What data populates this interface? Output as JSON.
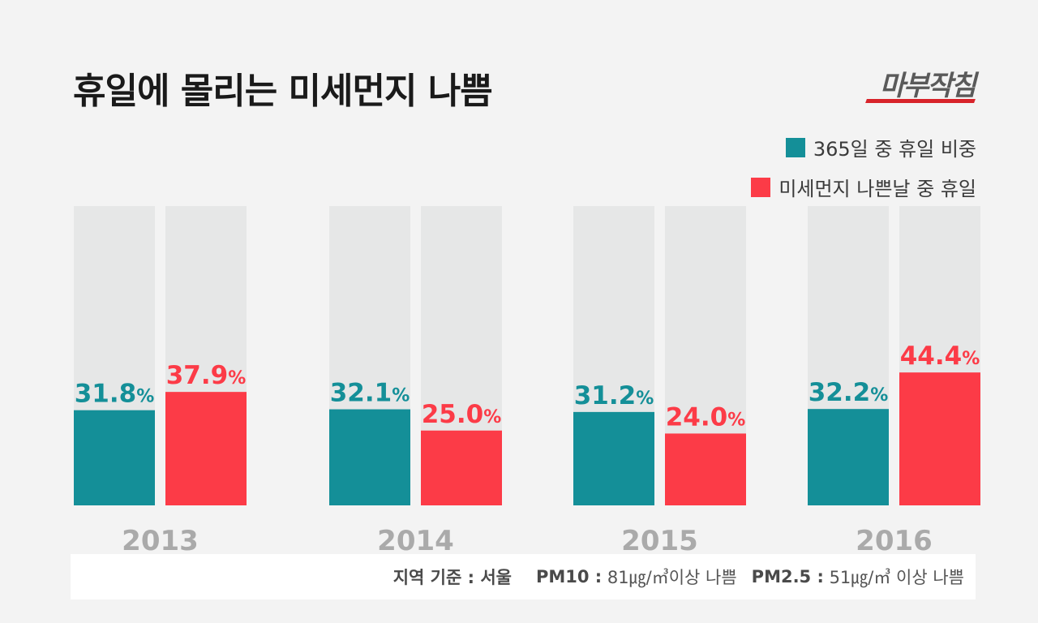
{
  "title": "휴일에 몰리는 미세먼지 나쁨",
  "brand": "마부작침",
  "legend": [
    {
      "label": "365일 중 휴일 비중",
      "color": "#148f98"
    },
    {
      "label": "미세먼지 나쁜날 중 휴일",
      "color": "#fc3b47"
    }
  ],
  "chart_data": {
    "type": "bar",
    "title": "휴일에 몰리는 미세먼지 나쁨",
    "categories": [
      "2013",
      "2014",
      "2015",
      "2016"
    ],
    "series": [
      {
        "name": "365일 중 휴일 비중",
        "values": [
          31.8,
          32.1,
          31.2,
          32.2
        ],
        "color": "#148f98"
      },
      {
        "name": "미세먼지 나쁜날 중 휴일",
        "values": [
          37.9,
          25.0,
          24.0,
          44.4
        ],
        "color": "#fc3b47"
      }
    ],
    "value_suffix": "%",
    "ylim": [
      0,
      100
    ],
    "grid": false,
    "legend_position": "top-right",
    "track_color": "#e6e7e7"
  },
  "footnote": {
    "region_label": "지역 기준 : 서울",
    "pm10_label": "PM10 :",
    "pm10_value": "81㎍/㎥이상 나쁨",
    "pm25_label": "PM2.5 :",
    "pm25_value": "51㎍/㎥ 이상 나쁨"
  }
}
